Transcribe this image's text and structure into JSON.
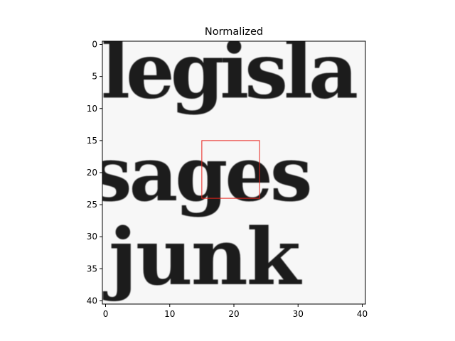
{
  "figure": {
    "title": "Normalized"
  },
  "chart_data": {
    "type": "heatmap",
    "title": "Normalized",
    "xlabel": "",
    "ylabel": "",
    "colormap": "gray",
    "grid": false,
    "xlim": [
      -0.5,
      40.5
    ],
    "ylim": [
      40.5,
      -0.5
    ],
    "x_ticks": [
      0,
      10,
      20,
      30,
      40
    ],
    "y_ticks": [
      0,
      5,
      10,
      15,
      20,
      25,
      30,
      35,
      40
    ],
    "x_tick_labels": [
      "0",
      "10",
      "20",
      "30",
      "40"
    ],
    "y_tick_labels": [
      "0",
      "5",
      "10",
      "15",
      "20",
      "25",
      "30",
      "35",
      "40"
    ],
    "image_content": {
      "description_lines": [
        "legisla",
        "sages",
        "junk"
      ]
    },
    "highlight_box": {
      "x0": 15,
      "y0": 15,
      "x1": 24,
      "y1": 24,
      "color": "#e8231b"
    }
  }
}
